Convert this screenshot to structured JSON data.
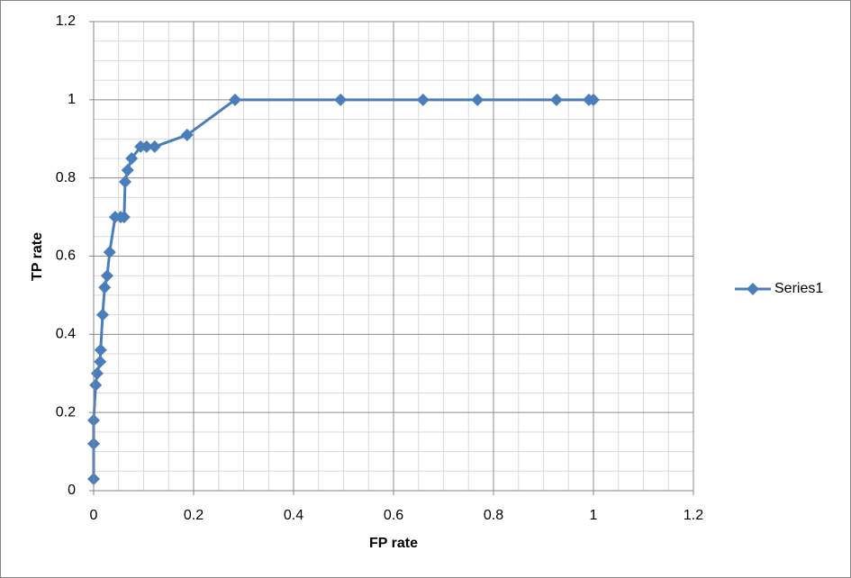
{
  "chart_data": {
    "type": "scatter-line",
    "x_label": "FP rate",
    "y_label": "TP rate",
    "xlim": [
      0,
      1.2
    ],
    "ylim": [
      0,
      1.2
    ],
    "xticks": [
      0,
      0.2,
      0.4,
      0.6,
      0.8,
      1,
      1.2
    ],
    "yticks": [
      0,
      0.2,
      0.4,
      0.6,
      0.8,
      1,
      1.2
    ],
    "grid": true,
    "legend": "right",
    "series": [
      {
        "name": "Series1",
        "color": "#4a7ebb",
        "x": [
          0,
          0,
          0,
          0.004,
          0.007,
          0.013,
          0.014,
          0.018,
          0.022,
          0.027,
          0.032,
          0.043,
          0.054,
          0.061,
          0.063,
          0.068,
          0.076,
          0.094,
          0.106,
          0.122,
          0.187,
          0.283,
          0.494,
          0.659,
          0.768,
          0.926,
          0.991,
          1
        ],
        "values": [
          0.03,
          0.12,
          0.18,
          0.27,
          0.3,
          0.33,
          0.36,
          0.45,
          0.52,
          0.55,
          0.61,
          0.7,
          0.7,
          0.7,
          0.79,
          0.82,
          0.85,
          0.88,
          0.88,
          0.88,
          0.91,
          1,
          1,
          1,
          1,
          1,
          1,
          1
        ]
      }
    ]
  }
}
